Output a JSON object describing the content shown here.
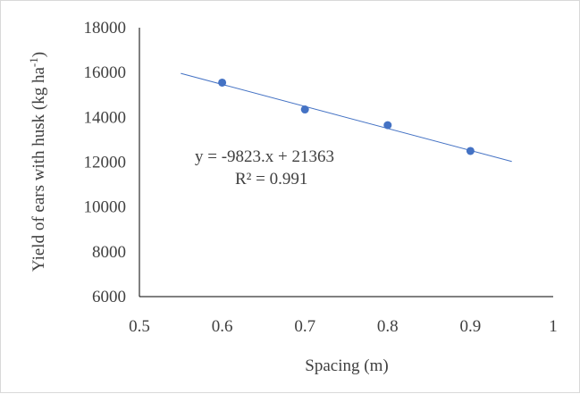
{
  "chart_data": {
    "type": "scatter",
    "title": "",
    "xlabel": "Spacing (m)",
    "ylabel_main": "Yield of ears with husk (kg ha",
    "ylabel_sup": "-1",
    "ylabel_close": ")",
    "xlim": [
      0.5,
      1
    ],
    "ylim": [
      6000,
      18000
    ],
    "x_ticks": [
      "0.5",
      "0.6",
      "0.7",
      "0.8",
      "0.9",
      "1"
    ],
    "y_ticks": [
      "6000",
      "8000",
      "10000",
      "12000",
      "14000",
      "16000",
      "18000"
    ],
    "grid": false,
    "legend": "none",
    "series": [
      {
        "x": [
          0.6,
          0.7,
          0.8,
          0.9
        ],
        "y": [
          15550,
          14350,
          13650,
          12500
        ],
        "color": "#4472c4"
      }
    ],
    "trendline": {
      "type": "linear",
      "slope": -9823,
      "intercept": 21363,
      "x_range": [
        0.55,
        0.95
      ],
      "color": "#4472c4"
    },
    "annotations": {
      "equation": "y = -9823.x + 21363",
      "r2": "R² = 0.991"
    }
  }
}
